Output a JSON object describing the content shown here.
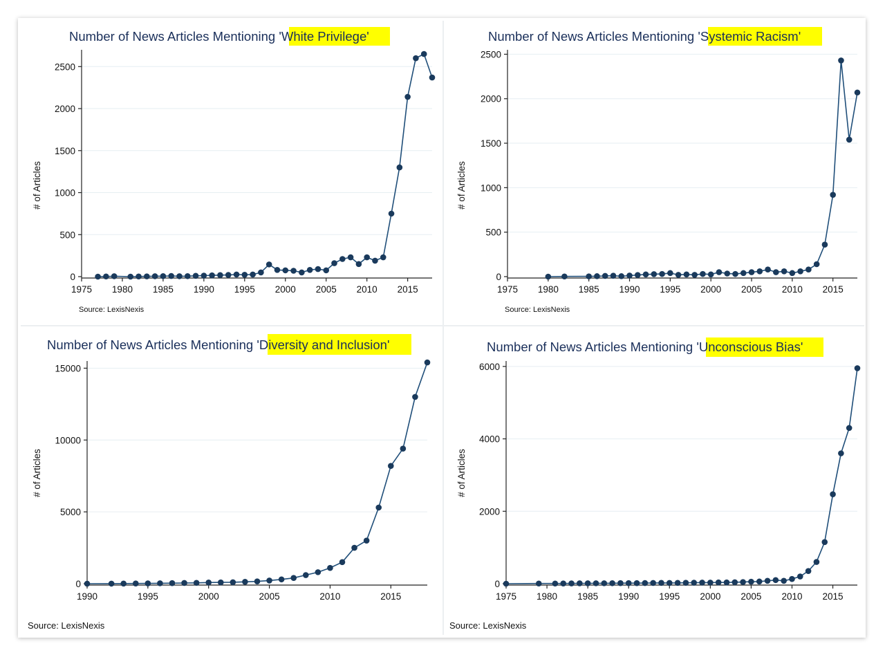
{
  "charts": [
    {
      "title_prefix": "Number of News Articles Mentioning ",
      "title_term": "'White Privilege'",
      "source": "Source: LexisNexis"
    },
    {
      "title_prefix": "Number of News Articles Mentioning ",
      "title_term": "'Systemic Racism'",
      "source": "Source: LexisNexis"
    },
    {
      "title_prefix": "Number of News Articles Mentioning ",
      "title_term": "'Diversity and Inclusion'",
      "source": "Source: LexisNexis"
    },
    {
      "title_prefix": "Number of News Articles Mentioning ",
      "title_term": "'Unconscious Bias'",
      "source": "Source: LexisNexis"
    }
  ],
  "highlight_color": "#ffff00",
  "series_color": "#1f4e79",
  "chart_data": [
    {
      "type": "line",
      "title": "Number of News Articles Mentioning 'White Privilege'",
      "xlabel": "",
      "ylabel": "# of Articles",
      "xlim": [
        1975,
        2018
      ],
      "ylim": [
        0,
        2700
      ],
      "xticks": [
        1975,
        1980,
        1985,
        1990,
        1995,
        2000,
        2005,
        2010,
        2015
      ],
      "yticks": [
        0,
        500,
        1000,
        1500,
        2000,
        2500
      ],
      "grid": true,
      "x": [
        1977,
        1978,
        1979,
        1981,
        1982,
        1983,
        1984,
        1985,
        1986,
        1987,
        1988,
        1989,
        1990,
        1991,
        1992,
        1993,
        1994,
        1995,
        1996,
        1997,
        1998,
        1999,
        2000,
        2001,
        2002,
        2003,
        2004,
        2005,
        2006,
        2007,
        2008,
        2009,
        2010,
        2011,
        2012,
        2013,
        2014,
        2015,
        2016,
        2017,
        2018
      ],
      "y": [
        0,
        2,
        5,
        0,
        2,
        3,
        5,
        6,
        8,
        5,
        6,
        10,
        12,
        15,
        18,
        20,
        25,
        22,
        25,
        50,
        145,
        80,
        75,
        70,
        50,
        80,
        90,
        75,
        160,
        210,
        230,
        150,
        230,
        190,
        230,
        750,
        1300,
        2140,
        2600,
        2650,
        2370
      ],
      "source": "Source: LexisNexis"
    },
    {
      "type": "line",
      "title": "Number of News Articles Mentioning 'Systemic Racism'",
      "xlabel": "",
      "ylabel": "# of Articles",
      "xlim": [
        1975,
        2018
      ],
      "ylim": [
        0,
        2550
      ],
      "xticks": [
        1975,
        1980,
        1985,
        1990,
        1995,
        2000,
        2005,
        2010,
        2015
      ],
      "yticks": [
        0,
        500,
        1000,
        1500,
        2000,
        2500
      ],
      "grid": true,
      "x": [
        1980,
        1982,
        1985,
        1986,
        1987,
        1988,
        1989,
        1990,
        1991,
        1992,
        1993,
        1994,
        1995,
        1996,
        1997,
        1998,
        1999,
        2000,
        2001,
        2002,
        2003,
        2004,
        2005,
        2006,
        2007,
        2008,
        2009,
        2010,
        2011,
        2012,
        2013,
        2014,
        2015,
        2016,
        2017,
        2018
      ],
      "y": [
        0,
        2,
        3,
        5,
        8,
        10,
        5,
        12,
        18,
        25,
        28,
        30,
        40,
        20,
        25,
        20,
        30,
        25,
        50,
        35,
        30,
        40,
        50,
        60,
        80,
        50,
        60,
        40,
        60,
        80,
        140,
        360,
        920,
        2430,
        1540,
        2070
      ],
      "source": "Source: LexisNexis"
    },
    {
      "type": "line",
      "title": "Number of News Articles Mentioning 'Diversity and Inclusion'",
      "xlabel": "",
      "ylabel": "# of Articles",
      "xlim": [
        1990,
        2018
      ],
      "ylim": [
        0,
        15500
      ],
      "xticks": [
        1990,
        1995,
        2000,
        2005,
        2010,
        2015
      ],
      "yticks": [
        0,
        5000,
        10000,
        15000
      ],
      "grid": true,
      "x": [
        1990,
        1992,
        1993,
        1994,
        1995,
        1996,
        1997,
        1998,
        1999,
        2000,
        2001,
        2002,
        2003,
        2004,
        2005,
        2006,
        2007,
        2008,
        2009,
        2010,
        2011,
        2012,
        2013,
        2014,
        2015,
        2016,
        2017,
        2018
      ],
      "y": [
        0,
        5,
        10,
        15,
        20,
        30,
        40,
        50,
        60,
        80,
        90,
        100,
        130,
        160,
        220,
        300,
        400,
        600,
        800,
        1100,
        1500,
        2500,
        3000,
        5300,
        8200,
        9400,
        13000,
        15400
      ],
      "source": "Source: LexisNexis"
    },
    {
      "type": "line",
      "title": "Number of News Articles Mentioning 'Unconscious Bias'",
      "xlabel": "",
      "ylabel": "# of Articles",
      "xlim": [
        1975,
        2018
      ],
      "ylim": [
        0,
        6150
      ],
      "xticks": [
        1975,
        1980,
        1985,
        1990,
        1995,
        2000,
        2005,
        2010,
        2015
      ],
      "yticks": [
        0,
        2000,
        4000,
        6000
      ],
      "grid": true,
      "x": [
        1975,
        1979,
        1981,
        1982,
        1983,
        1984,
        1985,
        1986,
        1987,
        1988,
        1989,
        1990,
        1991,
        1992,
        1993,
        1994,
        1995,
        1996,
        1997,
        1998,
        1999,
        2000,
        2001,
        2002,
        2003,
        2004,
        2005,
        2006,
        2007,
        2008,
        2009,
        2010,
        2011,
        2012,
        2013,
        2014,
        2015,
        2016,
        2017,
        2018
      ],
      "y": [
        0,
        5,
        5,
        6,
        8,
        10,
        10,
        12,
        12,
        14,
        15,
        15,
        16,
        18,
        20,
        22,
        20,
        22,
        25,
        28,
        30,
        30,
        35,
        35,
        40,
        45,
        55,
        60,
        80,
        100,
        80,
        130,
        200,
        350,
        600,
        1150,
        2470,
        3600,
        4300,
        5950
      ],
      "source": "Source: LexisNexis"
    }
  ]
}
